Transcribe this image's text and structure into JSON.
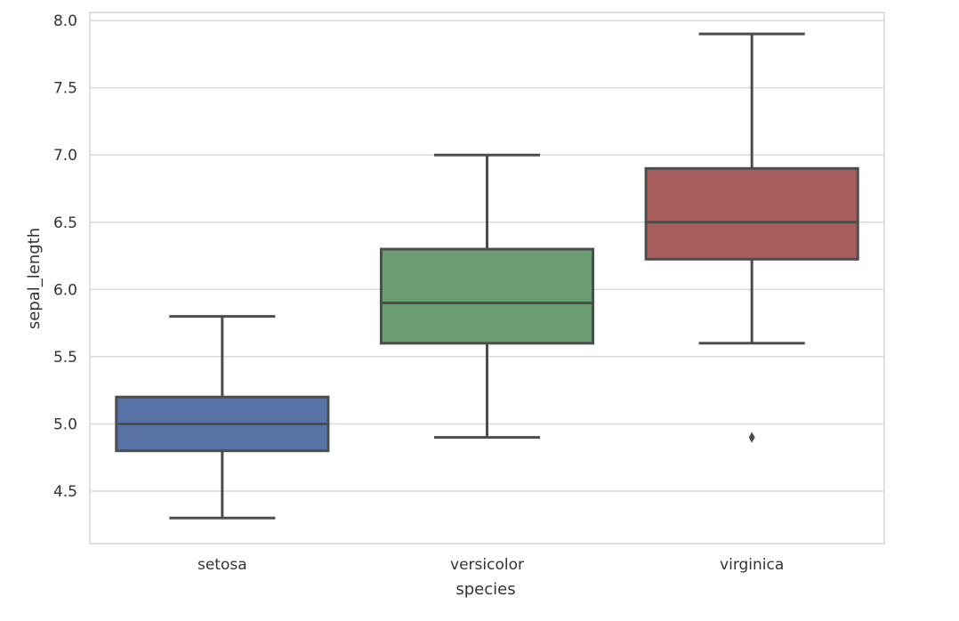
{
  "chart_data": {
    "type": "box",
    "xlabel": "species",
    "ylabel": "sepal_length",
    "ylim": [
      4.11,
      8.06
    ],
    "yticks": [
      4.5,
      5.0,
      5.5,
      6.0,
      6.5,
      7.0,
      7.5,
      8.0
    ],
    "ytick_labels": [
      "4.5",
      "5.0",
      "5.5",
      "6.0",
      "6.5",
      "7.0",
      "7.5",
      "8.0"
    ],
    "grid": true,
    "categories": [
      "setosa",
      "versicolor",
      "virginica"
    ],
    "boxes": [
      {
        "category": "setosa",
        "whisker_low": 4.3,
        "q1": 4.8,
        "median": 5.0,
        "q3": 5.2,
        "whisker_high": 5.8,
        "outliers": [],
        "color": "#5874a6"
      },
      {
        "category": "versicolor",
        "whisker_low": 4.9,
        "q1": 5.6,
        "median": 5.9,
        "q3": 6.3,
        "whisker_high": 7.0,
        "outliers": [],
        "color": "#6a9d72"
      },
      {
        "category": "virginica",
        "whisker_low": 5.6,
        "q1": 6.225,
        "median": 6.5,
        "q3": 6.9,
        "whisker_high": 7.9,
        "outliers": [
          4.9
        ],
        "color": "#a95e5e"
      }
    ]
  }
}
